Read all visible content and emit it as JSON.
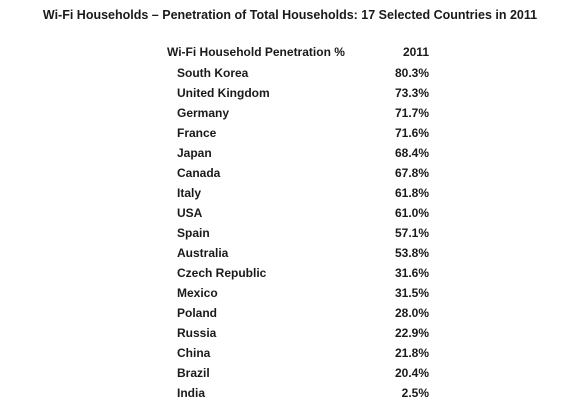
{
  "chart_data": {
    "type": "table",
    "title": "Wi-Fi Households – Penetration of Total Households: 17 Selected Countries in 2011",
    "columns": [
      "Wi-Fi Household Penetration %",
      "2011"
    ],
    "rows": [
      {
        "country": "South Korea",
        "value": "80.3%"
      },
      {
        "country": "United Kingdom",
        "value": "73.3%"
      },
      {
        "country": "Germany",
        "value": "71.7%"
      },
      {
        "country": "France",
        "value": "71.6%"
      },
      {
        "country": "Japan",
        "value": "68.4%"
      },
      {
        "country": "Canada",
        "value": "67.8%"
      },
      {
        "country": "Italy",
        "value": "61.8%"
      },
      {
        "country": "USA",
        "value": "61.0%"
      },
      {
        "country": "Spain",
        "value": "57.1%"
      },
      {
        "country": "Australia",
        "value": "53.8%"
      },
      {
        "country": "Czech Republic",
        "value": "31.6%"
      },
      {
        "country": "Mexico",
        "value": "31.5%"
      },
      {
        "country": "Poland",
        "value": "28.0%"
      },
      {
        "country": "Russia",
        "value": "22.9%"
      },
      {
        "country": "China",
        "value": "21.8%"
      },
      {
        "country": "Brazil",
        "value": "20.4%"
      },
      {
        "country": "India",
        "value": "2.5%"
      }
    ]
  }
}
